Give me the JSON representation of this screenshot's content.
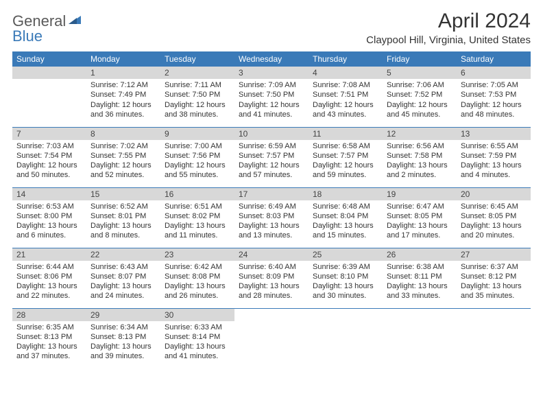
{
  "logo": {
    "general": "General",
    "blue": "Blue",
    "mark_color": "#3a7ab8"
  },
  "title": "April 2024",
  "subtitle": "Claypool Hill, Virginia, United States",
  "colors": {
    "header_bg": "#3a7ab8",
    "header_text": "#ffffff",
    "daynum_bg": "#d8d8d8",
    "row_divider": "#3a7ab8",
    "text": "#333333"
  },
  "layout": {
    "columns": 7,
    "rows": 5
  },
  "dayNames": [
    "Sunday",
    "Monday",
    "Tuesday",
    "Wednesday",
    "Thursday",
    "Friday",
    "Saturday"
  ],
  "weeks": [
    [
      {
        "day": null
      },
      {
        "day": 1,
        "sunrise": "7:12 AM",
        "sunset": "7:49 PM",
        "daylight1": "Daylight: 12 hours",
        "daylight2": "and 36 minutes."
      },
      {
        "day": 2,
        "sunrise": "7:11 AM",
        "sunset": "7:50 PM",
        "daylight1": "Daylight: 12 hours",
        "daylight2": "and 38 minutes."
      },
      {
        "day": 3,
        "sunrise": "7:09 AM",
        "sunset": "7:50 PM",
        "daylight1": "Daylight: 12 hours",
        "daylight2": "and 41 minutes."
      },
      {
        "day": 4,
        "sunrise": "7:08 AM",
        "sunset": "7:51 PM",
        "daylight1": "Daylight: 12 hours",
        "daylight2": "and 43 minutes."
      },
      {
        "day": 5,
        "sunrise": "7:06 AM",
        "sunset": "7:52 PM",
        "daylight1": "Daylight: 12 hours",
        "daylight2": "and 45 minutes."
      },
      {
        "day": 6,
        "sunrise": "7:05 AM",
        "sunset": "7:53 PM",
        "daylight1": "Daylight: 12 hours",
        "daylight2": "and 48 minutes."
      }
    ],
    [
      {
        "day": 7,
        "sunrise": "7:03 AM",
        "sunset": "7:54 PM",
        "daylight1": "Daylight: 12 hours",
        "daylight2": "and 50 minutes."
      },
      {
        "day": 8,
        "sunrise": "7:02 AM",
        "sunset": "7:55 PM",
        "daylight1": "Daylight: 12 hours",
        "daylight2": "and 52 minutes."
      },
      {
        "day": 9,
        "sunrise": "7:00 AM",
        "sunset": "7:56 PM",
        "daylight1": "Daylight: 12 hours",
        "daylight2": "and 55 minutes."
      },
      {
        "day": 10,
        "sunrise": "6:59 AM",
        "sunset": "7:57 PM",
        "daylight1": "Daylight: 12 hours",
        "daylight2": "and 57 minutes."
      },
      {
        "day": 11,
        "sunrise": "6:58 AM",
        "sunset": "7:57 PM",
        "daylight1": "Daylight: 12 hours",
        "daylight2": "and 59 minutes."
      },
      {
        "day": 12,
        "sunrise": "6:56 AM",
        "sunset": "7:58 PM",
        "daylight1": "Daylight: 13 hours",
        "daylight2": "and 2 minutes."
      },
      {
        "day": 13,
        "sunrise": "6:55 AM",
        "sunset": "7:59 PM",
        "daylight1": "Daylight: 13 hours",
        "daylight2": "and 4 minutes."
      }
    ],
    [
      {
        "day": 14,
        "sunrise": "6:53 AM",
        "sunset": "8:00 PM",
        "daylight1": "Daylight: 13 hours",
        "daylight2": "and 6 minutes."
      },
      {
        "day": 15,
        "sunrise": "6:52 AM",
        "sunset": "8:01 PM",
        "daylight1": "Daylight: 13 hours",
        "daylight2": "and 8 minutes."
      },
      {
        "day": 16,
        "sunrise": "6:51 AM",
        "sunset": "8:02 PM",
        "daylight1": "Daylight: 13 hours",
        "daylight2": "and 11 minutes."
      },
      {
        "day": 17,
        "sunrise": "6:49 AM",
        "sunset": "8:03 PM",
        "daylight1": "Daylight: 13 hours",
        "daylight2": "and 13 minutes."
      },
      {
        "day": 18,
        "sunrise": "6:48 AM",
        "sunset": "8:04 PM",
        "daylight1": "Daylight: 13 hours",
        "daylight2": "and 15 minutes."
      },
      {
        "day": 19,
        "sunrise": "6:47 AM",
        "sunset": "8:05 PM",
        "daylight1": "Daylight: 13 hours",
        "daylight2": "and 17 minutes."
      },
      {
        "day": 20,
        "sunrise": "6:45 AM",
        "sunset": "8:05 PM",
        "daylight1": "Daylight: 13 hours",
        "daylight2": "and 20 minutes."
      }
    ],
    [
      {
        "day": 21,
        "sunrise": "6:44 AM",
        "sunset": "8:06 PM",
        "daylight1": "Daylight: 13 hours",
        "daylight2": "and 22 minutes."
      },
      {
        "day": 22,
        "sunrise": "6:43 AM",
        "sunset": "8:07 PM",
        "daylight1": "Daylight: 13 hours",
        "daylight2": "and 24 minutes."
      },
      {
        "day": 23,
        "sunrise": "6:42 AM",
        "sunset": "8:08 PM",
        "daylight1": "Daylight: 13 hours",
        "daylight2": "and 26 minutes."
      },
      {
        "day": 24,
        "sunrise": "6:40 AM",
        "sunset": "8:09 PM",
        "daylight1": "Daylight: 13 hours",
        "daylight2": "and 28 minutes."
      },
      {
        "day": 25,
        "sunrise": "6:39 AM",
        "sunset": "8:10 PM",
        "daylight1": "Daylight: 13 hours",
        "daylight2": "and 30 minutes."
      },
      {
        "day": 26,
        "sunrise": "6:38 AM",
        "sunset": "8:11 PM",
        "daylight1": "Daylight: 13 hours",
        "daylight2": "and 33 minutes."
      },
      {
        "day": 27,
        "sunrise": "6:37 AM",
        "sunset": "8:12 PM",
        "daylight1": "Daylight: 13 hours",
        "daylight2": "and 35 minutes."
      }
    ],
    [
      {
        "day": 28,
        "sunrise": "6:35 AM",
        "sunset": "8:13 PM",
        "daylight1": "Daylight: 13 hours",
        "daylight2": "and 37 minutes."
      },
      {
        "day": 29,
        "sunrise": "6:34 AM",
        "sunset": "8:13 PM",
        "daylight1": "Daylight: 13 hours",
        "daylight2": "and 39 minutes."
      },
      {
        "day": 30,
        "sunrise": "6:33 AM",
        "sunset": "8:14 PM",
        "daylight1": "Daylight: 13 hours",
        "daylight2": "and 41 minutes."
      },
      {
        "day": null
      },
      {
        "day": null
      },
      {
        "day": null
      },
      {
        "day": null
      }
    ]
  ],
  "labels": {
    "sunrise": "Sunrise: ",
    "sunset": "Sunset: "
  }
}
